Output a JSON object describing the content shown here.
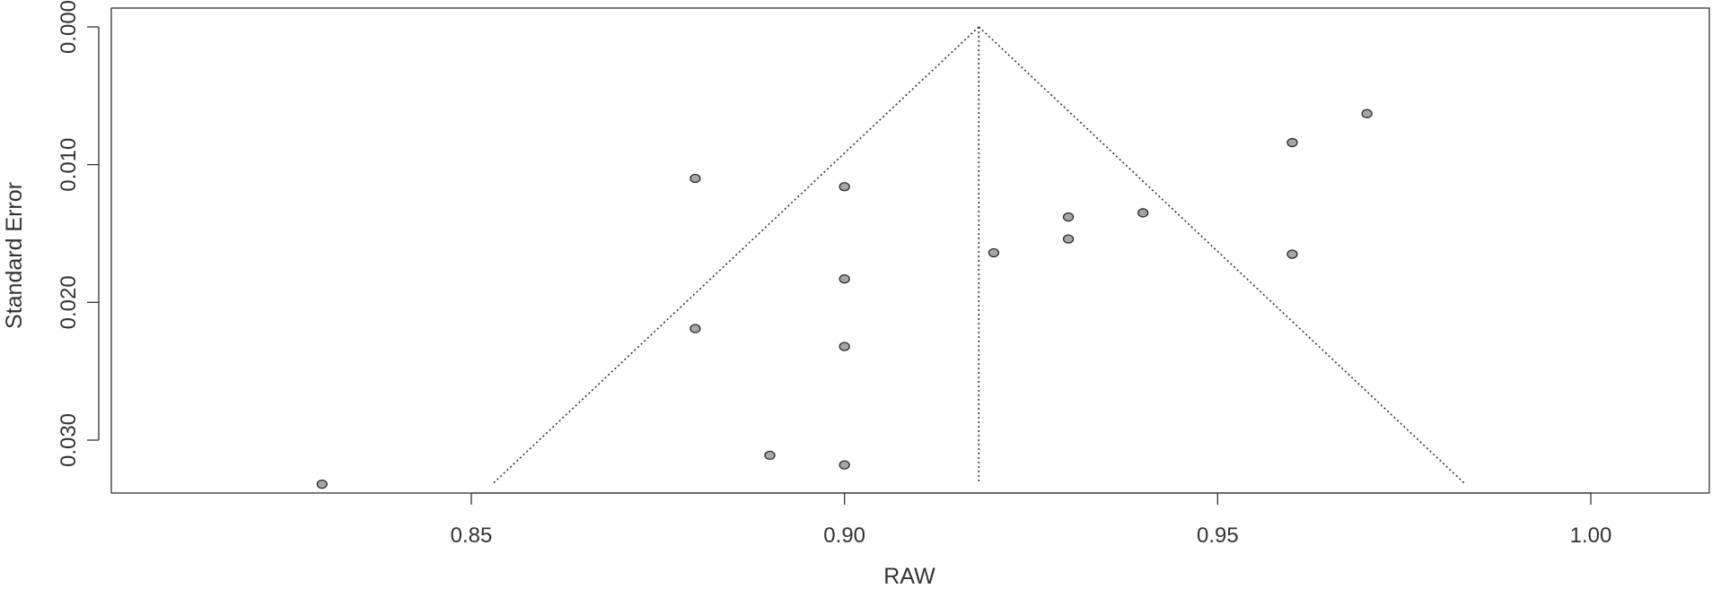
{
  "chart_data": {
    "type": "scatter",
    "subtype": "funnel-plot",
    "title": "",
    "xlabel": "RAW",
    "ylabel": "Standard Error",
    "xlim": [
      0.805,
      1.015
    ],
    "ylim": [
      0.0,
      0.0345
    ],
    "y_reversed": true,
    "x_ticks": [
      0.85,
      0.9,
      0.95,
      1.0
    ],
    "x_tick_labels": [
      "0.85",
      "0.90",
      "0.95",
      "1.00"
    ],
    "y_ticks": [
      0.0,
      0.01,
      0.02,
      0.03
    ],
    "y_tick_labels": [
      "0.000",
      "0.010",
      "0.020",
      "0.030"
    ],
    "grid": false,
    "funnel": {
      "center": 0.918,
      "apex_se": 0.0,
      "base_se": 0.0331,
      "left_base_x": 0.853,
      "right_base_x": 0.983
    },
    "points": [
      {
        "x": 0.83,
        "y": 0.0332
      },
      {
        "x": 0.88,
        "y": 0.011
      },
      {
        "x": 0.88,
        "y": 0.0219
      },
      {
        "x": 0.89,
        "y": 0.0311
      },
      {
        "x": 0.9,
        "y": 0.0116
      },
      {
        "x": 0.9,
        "y": 0.0183
      },
      {
        "x": 0.9,
        "y": 0.0232
      },
      {
        "x": 0.9,
        "y": 0.0318
      },
      {
        "x": 0.92,
        "y": 0.0164
      },
      {
        "x": 0.93,
        "y": 0.0138
      },
      {
        "x": 0.93,
        "y": 0.0154
      },
      {
        "x": 0.94,
        "y": 0.0135
      },
      {
        "x": 0.96,
        "y": 0.0084
      },
      {
        "x": 0.96,
        "y": 0.0165
      },
      {
        "x": 0.97,
        "y": 0.0063
      }
    ],
    "colors": {
      "point_fill": "#a6a6a6",
      "point_stroke": "#2b2b2b",
      "line": "#333333",
      "text": "#333333"
    }
  }
}
